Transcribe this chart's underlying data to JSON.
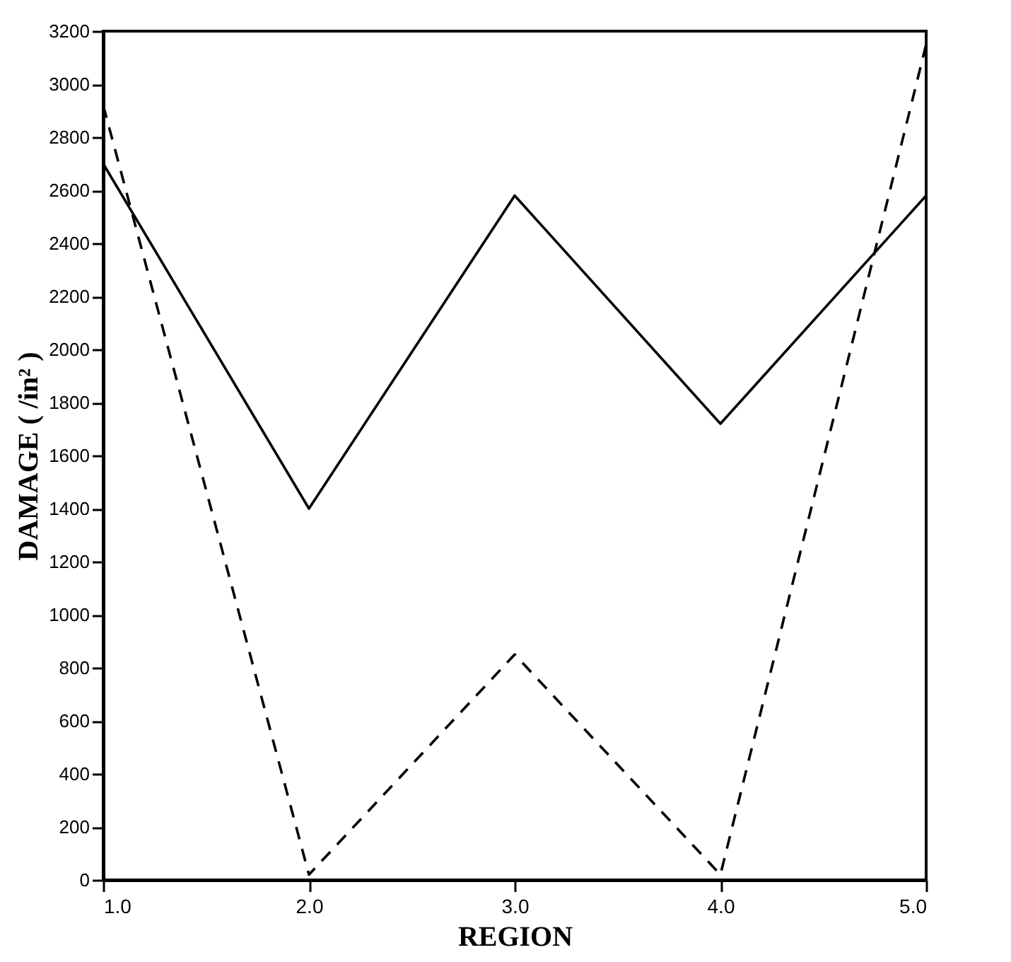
{
  "chart_data": {
    "type": "line",
    "xlabel": "REGION",
    "ylabel": "DAMAGE ( /in² )",
    "x": [
      1,
      2,
      3,
      4,
      5
    ],
    "series": [
      {
        "color": "#000000",
        "line_style": "solid",
        "values": [
          2700,
          1400,
          2580,
          1720,
          2580
        ]
      },
      {
        "color": "#000000",
        "line_style": "dashed",
        "values": [
          2920,
          20,
          850,
          20,
          3150
        ]
      }
    ],
    "xlim": [
      1,
      5
    ],
    "xticks": [
      {
        "value": 1,
        "label": "1.0"
      },
      {
        "value": 2,
        "label": "2.0"
      },
      {
        "value": 3,
        "label": "3.0"
      },
      {
        "value": 4,
        "label": "4.0"
      },
      {
        "value": 5,
        "label": "5.0"
      }
    ],
    "ylim": [
      0,
      3200
    ],
    "yticks": [
      0,
      200,
      400,
      600,
      800,
      1000,
      1200,
      1400,
      1600,
      1800,
      2000,
      2200,
      2400,
      2600,
      2800,
      3000,
      3200
    ],
    "grid": false,
    "marker": "none"
  }
}
